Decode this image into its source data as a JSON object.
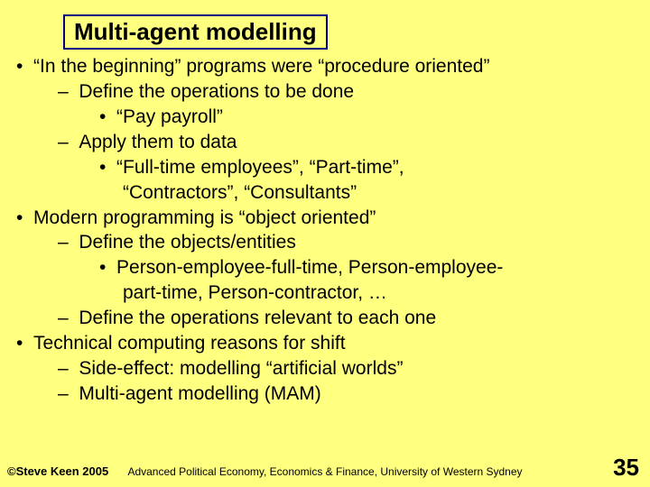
{
  "title": "Multi-agent modelling",
  "lines": [
    {
      "indent": 0,
      "bullet": "•",
      "text": "“In the beginning” programs were “procedure oriented”"
    },
    {
      "indent": 1,
      "bullet": "–",
      "text": "Define the operations to be done"
    },
    {
      "indent": 2,
      "bullet": "•",
      "text": "“Pay payroll”"
    },
    {
      "indent": 1,
      "bullet": "–",
      "text": "Apply them to data"
    },
    {
      "indent": 2,
      "bullet": "•",
      "text": "“Full-time employees”, “Part-time”,"
    },
    {
      "indent": 2,
      "bullet": "",
      "text": "“Contractors”, “Consultants”",
      "cont": true
    },
    {
      "indent": 0,
      "bullet": "•",
      "text": "Modern programming is “object oriented”"
    },
    {
      "indent": 1,
      "bullet": "–",
      "text": "Define the objects/entities"
    },
    {
      "indent": 2,
      "bullet": "•",
      "text": "Person-employee-full-time, Person-employee-"
    },
    {
      "indent": 2,
      "bullet": "",
      "text": "part-time, Person-contractor, …",
      "cont": true
    },
    {
      "indent": 1,
      "bullet": "–",
      "text": "Define the operations relevant to each one"
    },
    {
      "indent": 0,
      "bullet": "•",
      "text": "Technical computing reasons for shift"
    },
    {
      "indent": 1,
      "bullet": "–",
      "text": "Side-effect: modelling “artificial worlds”"
    },
    {
      "indent": 1,
      "bullet": "–",
      "text": "Multi-agent modelling (MAM)"
    }
  ],
  "copyright": "©Steve Keen 2005",
  "footer_center": "Advanced Political Economy, Economics & Finance, University of Western Sydney",
  "page_number": "35",
  "colors": {
    "background": "#ffff80",
    "title_border": "#000080",
    "text": "#000000"
  },
  "fonts": {
    "body_family": "Comic Sans MS",
    "title_size_pt": 26,
    "body_size_pt": 21,
    "footer_size_pt": 13,
    "pagenum_size_pt": 26
  }
}
